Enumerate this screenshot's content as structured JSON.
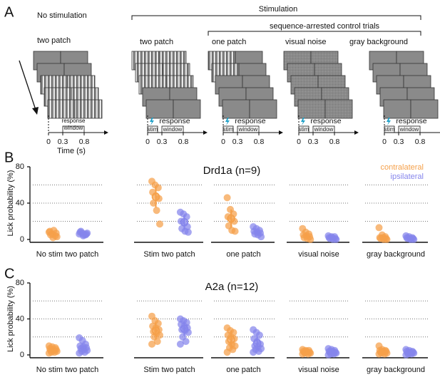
{
  "panel_labels": [
    "A",
    "B",
    "C"
  ],
  "panel_a": {
    "left_header": "No stimulation",
    "left_title": "two patch",
    "stim_header": "Stimulation",
    "control_header": "sequence-arrested control trials",
    "columns": [
      "two patch",
      "one patch",
      "visual noise",
      "gray background"
    ],
    "timeline": {
      "ticks": [
        "0",
        "0.3",
        "0.8"
      ],
      "window": [
        "response",
        "window"
      ],
      "stim": "stim",
      "xlabel": "Time (s)"
    }
  },
  "chart_data": [
    {
      "type": "strip",
      "title": "Drd1a (n=9)",
      "ylabel": "Lick probability (%)",
      "categories": [
        "No stim two patch",
        "Stim two patch",
        "one patch",
        "visual noise",
        "gray background"
      ],
      "ylim": [
        0,
        80
      ],
      "yticks": [
        0,
        40,
        80
      ],
      "gridlines": [
        20,
        40,
        60
      ],
      "legend": "top-right",
      "series": [
        {
          "name": "contralateral",
          "color": "#f5a04a",
          "values": [
            [
              8,
              6,
              4,
              9,
              2,
              7,
              5,
              10,
              3
            ],
            [
              64,
              60,
              57,
              52,
              48,
              45,
              40,
              32,
              17
            ],
            [
              46,
              33,
              28,
              25,
              22,
              20,
              15,
              10,
              9
            ],
            [
              12,
              8,
              6,
              5,
              4,
              3,
              2,
              1,
              0
            ],
            [
              13,
              5,
              3,
              2,
              2,
              1,
              1,
              0,
              0
            ]
          ],
          "means": [
            null,
            47,
            23,
            null,
            null
          ],
          "errors": [
            null,
            12,
            10,
            null,
            null
          ]
        },
        {
          "name": "ipsilateral",
          "color": "#8585ec",
          "values": [
            [
              6,
              7,
              5,
              8,
              4,
              6,
              9,
              5,
              7
            ],
            [
              30,
              28,
              25,
              20,
              18,
              14,
              12,
              9,
              8
            ],
            [
              14,
              12,
              10,
              9,
              8,
              7,
              6,
              5,
              3
            ],
            [
              4,
              3,
              3,
              2,
              2,
              1,
              1,
              0,
              0
            ],
            [
              4,
              3,
              2,
              2,
              1,
              1,
              1,
              0,
              0
            ]
          ],
          "means": [
            null,
            19,
            null,
            null,
            null
          ],
          "errors": [
            null,
            8,
            null,
            null,
            null
          ]
        }
      ]
    },
    {
      "type": "strip",
      "title": "A2a (n=12)",
      "ylabel": "Lick probability (%)",
      "categories": [
        "No stim two patch",
        "Stim two patch",
        "one patch",
        "visual noise",
        "gray background"
      ],
      "ylim": [
        0,
        80
      ],
      "yticks": [
        0,
        40,
        80
      ],
      "gridlines": [
        20,
        40,
        60
      ],
      "series": [
        {
          "name": "contralateral",
          "color": "#f5a04a",
          "values": [
            [
              10,
              9,
              8,
              7,
              6,
              6,
              5,
              5,
              4,
              3,
              3,
              2
            ],
            [
              43,
              38,
              35,
              32,
              30,
              28,
              26,
              24,
              22,
              20,
              15,
              12
            ],
            [
              30,
              27,
              25,
              22,
              20,
              18,
              15,
              12,
              10,
              8,
              6,
              3
            ],
            [
              6,
              5,
              5,
              4,
              4,
              3,
              3,
              3,
              2,
              2,
              1,
              1
            ],
            [
              10,
              6,
              5,
              5,
              4,
              4,
              3,
              3,
              2,
              2,
              1,
              1
            ]
          ],
          "means": [
            null,
            27,
            17,
            null,
            null
          ],
          "errors": [
            null,
            9,
            10,
            null,
            null
          ]
        },
        {
          "name": "ipsilateral",
          "color": "#8585ec",
          "values": [
            [
              19,
              16,
              12,
              10,
              9,
              8,
              7,
              6,
              5,
              4,
              3,
              2
            ],
            [
              40,
              38,
              36,
              34,
              32,
              30,
              28,
              27,
              25,
              20,
              15,
              12
            ],
            [
              28,
              25,
              22,
              18,
              15,
              12,
              10,
              9,
              7,
              6,
              4,
              3
            ],
            [
              7,
              6,
              5,
              4,
              4,
              3,
              3,
              2,
              2,
              1,
              1,
              0
            ],
            [
              6,
              5,
              4,
              4,
              3,
              3,
              2,
              2,
              2,
              1,
              1,
              0
            ]
          ],
          "means": [
            null,
            29,
            13,
            null,
            null
          ],
          "errors": [
            null,
            8,
            8,
            null,
            null
          ]
        }
      ]
    }
  ]
}
